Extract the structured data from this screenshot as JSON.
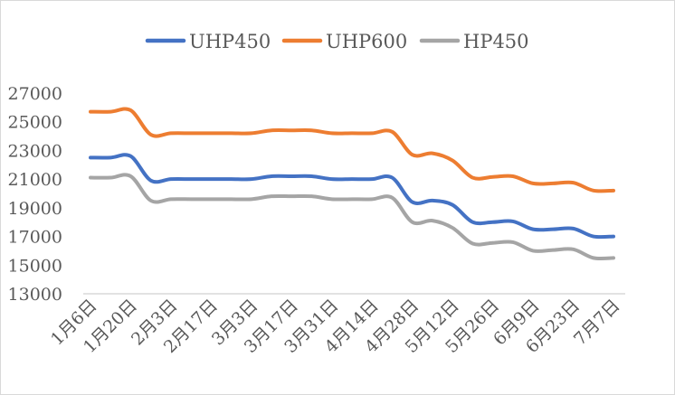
{
  "chart_data": {
    "type": "line",
    "title": "",
    "xlabel": "",
    "ylabel": "",
    "ylim": [
      13000,
      27000
    ],
    "yticks": [
      13000,
      15000,
      17000,
      19000,
      21000,
      23000,
      25000,
      27000
    ],
    "grid": false,
    "legend": "top",
    "smooth": true,
    "x_tick_labels": [
      "1月6日",
      "1月20日",
      "2月3日",
      "2月17日",
      "3月3日",
      "3月17日",
      "3月31日",
      "4月14日",
      "4月28日",
      "5月12日",
      "5月26日",
      "6月9日",
      "6月23日",
      "7月7日"
    ],
    "points_per_label": 2,
    "series": [
      {
        "name": "UHP450",
        "color": "#4472C4",
        "values": [
          22500,
          22500,
          22600,
          20900,
          21000,
          21000,
          21000,
          21000,
          21000,
          21200,
          21200,
          21200,
          21000,
          21000,
          21000,
          21100,
          19400,
          19500,
          19200,
          18000,
          18000,
          18050,
          17500,
          17500,
          17550,
          17000,
          17000
        ]
      },
      {
        "name": "UHP600",
        "color": "#ED7D31",
        "values": [
          25700,
          25700,
          25800,
          24100,
          24200,
          24200,
          24200,
          24200,
          24200,
          24400,
          24400,
          24400,
          24200,
          24200,
          24200,
          24300,
          22700,
          22800,
          22300,
          21100,
          21150,
          21200,
          20700,
          20700,
          20750,
          20200,
          20200
        ]
      },
      {
        "name": "HP450",
        "color": "#A5A5A5",
        "values": [
          21100,
          21100,
          21200,
          19500,
          19600,
          19600,
          19600,
          19600,
          19600,
          19800,
          19800,
          19800,
          19600,
          19600,
          19600,
          19700,
          18000,
          18100,
          17600,
          16500,
          16550,
          16600,
          16000,
          16050,
          16100,
          15500,
          15500
        ]
      }
    ]
  }
}
